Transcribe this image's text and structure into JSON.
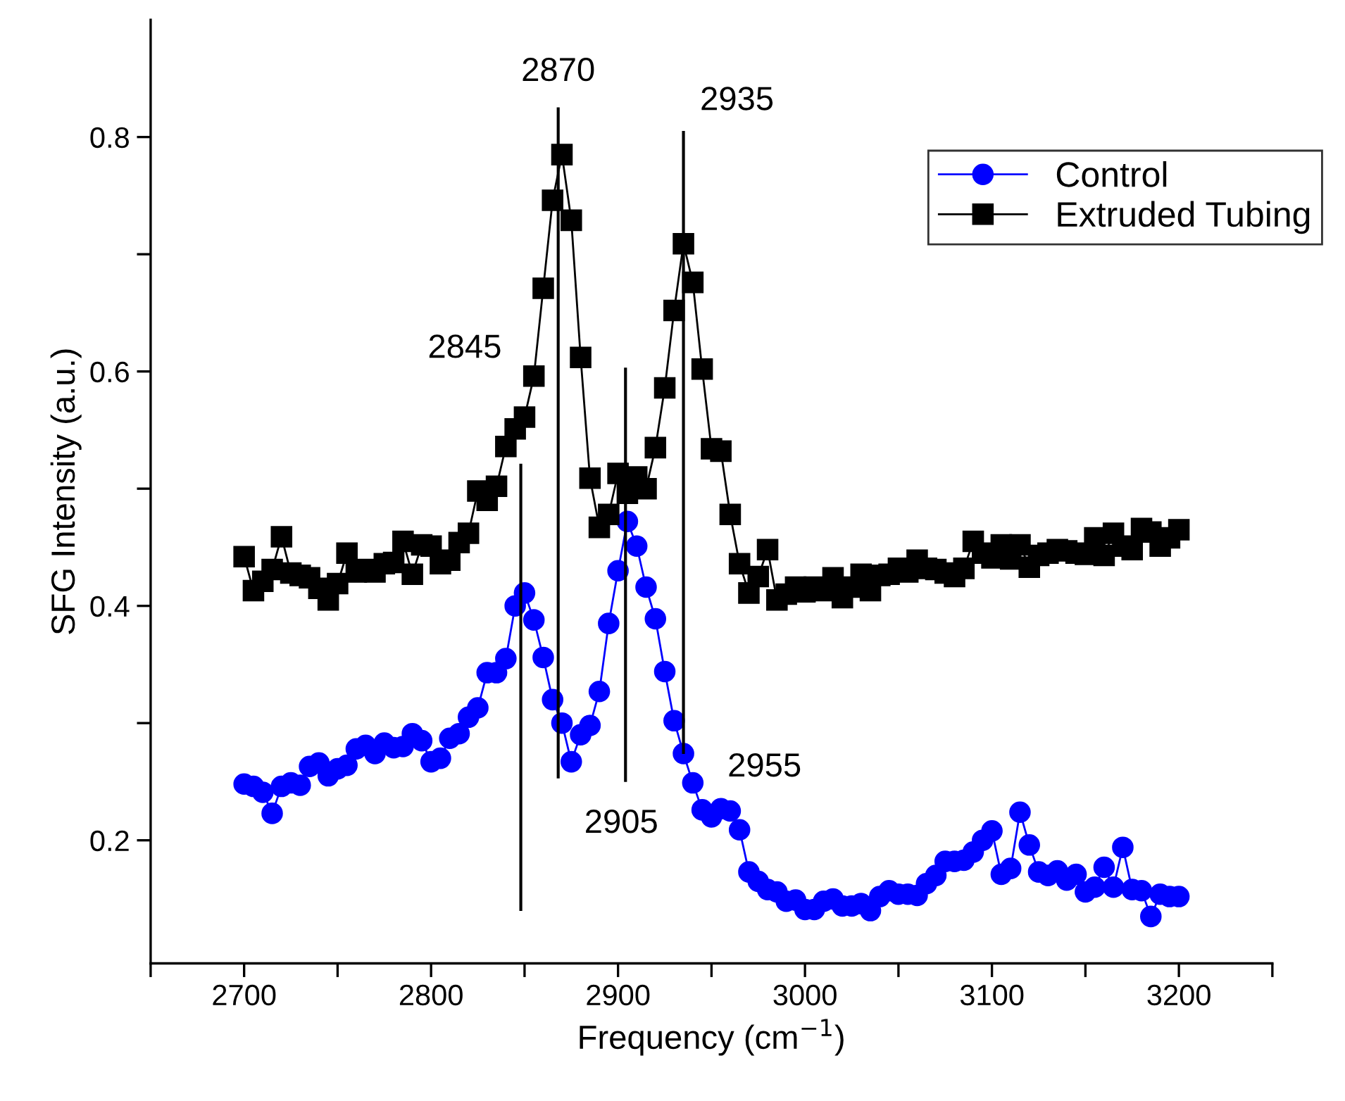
{
  "chart_data": {
    "type": "line",
    "xlabel": "Frequency (cm$^{−1}$)",
    "ylabel": "SFG Intensity (a.u.)",
    "xlim": [
      2650,
      3250
    ],
    "ylim": [
      0.095,
      0.9
    ],
    "xticks": [
      2700,
      2800,
      2900,
      3000,
      3100,
      3200,
      {
        "value": 2650,
        "label": null
      },
      {
        "value": 2750,
        "label": null
      },
      {
        "value": 2850,
        "label": null
      },
      {
        "value": 2950,
        "label": null
      },
      {
        "value": 3050,
        "label": null
      },
      {
        "value": 3150,
        "label": null
      },
      {
        "value": 3250,
        "label": null
      }
    ],
    "yticks": [
      0.2,
      0.4,
      0.6,
      0.8,
      {
        "value": 0.3,
        "label": null
      },
      {
        "value": 0.5,
        "label": null
      },
      {
        "value": 0.7,
        "label": null
      }
    ],
    "grid": false,
    "legend": "top right",
    "x": [
      2700,
      2705,
      2710,
      2715,
      2720,
      2725,
      2730,
      2735,
      2740,
      2745,
      2750,
      2755,
      2760,
      2765,
      2770,
      2775,
      2780,
      2785,
      2790,
      2795,
      2800,
      2805,
      2810,
      2815,
      2820,
      2825,
      2830,
      2835,
      2840,
      2845,
      2850,
      2855,
      2860,
      2865,
      2870,
      2875,
      2880,
      2885,
      2890,
      2895,
      2900,
      2905,
      2910,
      2915,
      2920,
      2925,
      2930,
      2935,
      2940,
      2945,
      2950,
      2955,
      2960,
      2965,
      2970,
      2975,
      2980,
      2985,
      2990,
      2995,
      3000,
      3005,
      3010,
      3015,
      3020,
      3025,
      3030,
      3035,
      3040,
      3045,
      3050,
      3055,
      3060,
      3065,
      3070,
      3075,
      3080,
      3085,
      3090,
      3095,
      3100,
      3105,
      3110,
      3115,
      3120,
      3125,
      3130,
      3135,
      3140,
      3145,
      3150,
      3155,
      3160,
      3165,
      3170,
      3175,
      3180,
      3185,
      3190,
      3195,
      3200
    ],
    "series": [
      {
        "name": "Control",
        "color": "#0000ff",
        "marker": "circle",
        "values": [
          0.248,
          0.246,
          0.241,
          0.223,
          0.246,
          0.249,
          0.247,
          0.263,
          0.266,
          0.255,
          0.261,
          0.264,
          0.278,
          0.281,
          0.274,
          0.283,
          0.279,
          0.28,
          0.291,
          0.285,
          0.267,
          0.27,
          0.287,
          0.291,
          0.305,
          0.313,
          0.343,
          0.343,
          0.355,
          0.4,
          0.411,
          0.388,
          0.356,
          0.32,
          0.3,
          0.267,
          0.29,
          0.298,
          0.327,
          0.385,
          0.43,
          0.472,
          0.451,
          0.416,
          0.389,
          0.344,
          0.302,
          0.274,
          0.249,
          0.226,
          0.22,
          0.227,
          0.225,
          0.209,
          0.173,
          0.165,
          0.158,
          0.156,
          0.148,
          0.149,
          0.141,
          0.141,
          0.148,
          0.15,
          0.144,
          0.144,
          0.146,
          0.14,
          0.152,
          0.157,
          0.154,
          0.154,
          0.153,
          0.163,
          0.17,
          0.182,
          0.182,
          0.183,
          0.19,
          0.2,
          0.208,
          0.171,
          0.176,
          0.224,
          0.196,
          0.173,
          0.17,
          0.174,
          0.166,
          0.171,
          0.156,
          0.16,
          0.177,
          0.16,
          0.194,
          0.158,
          0.157,
          0.135,
          0.154,
          0.152,
          0.152
        ]
      },
      {
        "name": "Extruded Tubing",
        "color": "#000000",
        "marker": "square",
        "values": [
          0.442,
          0.413,
          0.421,
          0.431,
          0.459,
          0.428,
          0.426,
          0.424,
          0.415,
          0.405,
          0.419,
          0.445,
          0.429,
          0.431,
          0.429,
          0.436,
          0.437,
          0.455,
          0.427,
          0.452,
          0.451,
          0.436,
          0.439,
          0.454,
          0.462,
          0.498,
          0.49,
          0.502,
          0.536,
          0.551,
          0.561,
          0.596,
          0.671,
          0.746,
          0.785,
          0.729,
          0.612,
          0.509,
          0.467,
          0.478,
          0.513,
          0.496,
          0.51,
          0.5,
          0.535,
          0.586,
          0.652,
          0.709,
          0.676,
          0.602,
          0.534,
          0.532,
          0.478,
          0.436,
          0.411,
          0.425,
          0.448,
          0.405,
          0.41,
          0.416,
          0.412,
          0.416,
          0.413,
          0.424,
          0.407,
          0.416,
          0.427,
          0.413,
          0.426,
          0.427,
          0.432,
          0.429,
          0.439,
          0.432,
          0.431,
          0.428,
          0.425,
          0.432,
          0.455,
          0.445,
          0.441,
          0.452,
          0.44,
          0.452,
          0.433,
          0.443,
          0.445,
          0.448,
          0.447,
          0.445,
          0.444,
          0.458,
          0.443,
          0.462,
          0.451,
          0.448,
          0.466,
          0.463,
          0.451,
          0.458,
          0.465
        ]
      },
      {
        "color": "#000000",
        "marker": "none",
        "x": [
          2848,
          2848
        ],
        "values": [
          0.141,
          0.52
        ]
      },
      {
        "color": "#000000",
        "marker": "none",
        "x": [
          2868,
          2868
        ],
        "values": [
          0.254,
          0.824
        ]
      },
      {
        "color": "#000000",
        "marker": "none",
        "x": [
          2904,
          2904
        ],
        "values": [
          0.251,
          0.602
        ]
      },
      {
        "color": "#000000",
        "marker": "none",
        "x": [
          2935,
          2935
        ],
        "values": [
          0.275,
          0.804
        ]
      }
    ],
    "annotations": [
      "2845",
      {
        "text": "2870",
        "x": 2868,
        "y": 0.824
      },
      {
        "text": "2935",
        "x": 2935,
        "y": 0.804
      },
      {
        "text": "2905",
        "x": 2904,
        "y": 0.251
      },
      {
        "text": "2955",
        "x": 2955,
        "y": 0.227
      }
    ]
  }
}
